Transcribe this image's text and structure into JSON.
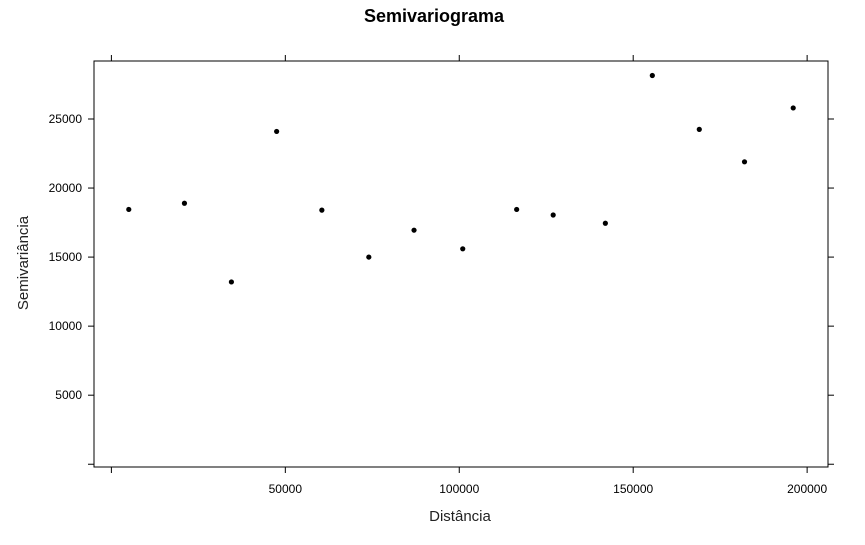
{
  "chart_data": {
    "type": "scatter",
    "title": "Semivariograma",
    "xlabel": "Distância",
    "ylabel": "Semivariância",
    "xlim": [
      -5000,
      206000
    ],
    "ylim": [
      -200,
      29200
    ],
    "x_ticks": [
      0,
      50000,
      100000,
      150000,
      200000
    ],
    "x_tick_labels": [
      "",
      "50000",
      "100000",
      "150000",
      "200000"
    ],
    "y_ticks": [
      0,
      5000,
      10000,
      15000,
      20000,
      25000
    ],
    "y_tick_labels": [
      "",
      "5000",
      "10000",
      "15000",
      "20000",
      "25000"
    ],
    "grid": false,
    "marker_color": "#000000",
    "points": [
      {
        "x": 5000,
        "y": 18450
      },
      {
        "x": 21000,
        "y": 18900
      },
      {
        "x": 34500,
        "y": 13200
      },
      {
        "x": 47500,
        "y": 24100
      },
      {
        "x": 60500,
        "y": 18400
      },
      {
        "x": 74000,
        "y": 15000
      },
      {
        "x": 87000,
        "y": 16950
      },
      {
        "x": 101000,
        "y": 15600
      },
      {
        "x": 116500,
        "y": 18450
      },
      {
        "x": 127000,
        "y": 18050
      },
      {
        "x": 142000,
        "y": 17450
      },
      {
        "x": 155500,
        "y": 28150
      },
      {
        "x": 169000,
        "y": 24250
      },
      {
        "x": 182000,
        "y": 21900
      },
      {
        "x": 196000,
        "y": 25800
      }
    ]
  }
}
